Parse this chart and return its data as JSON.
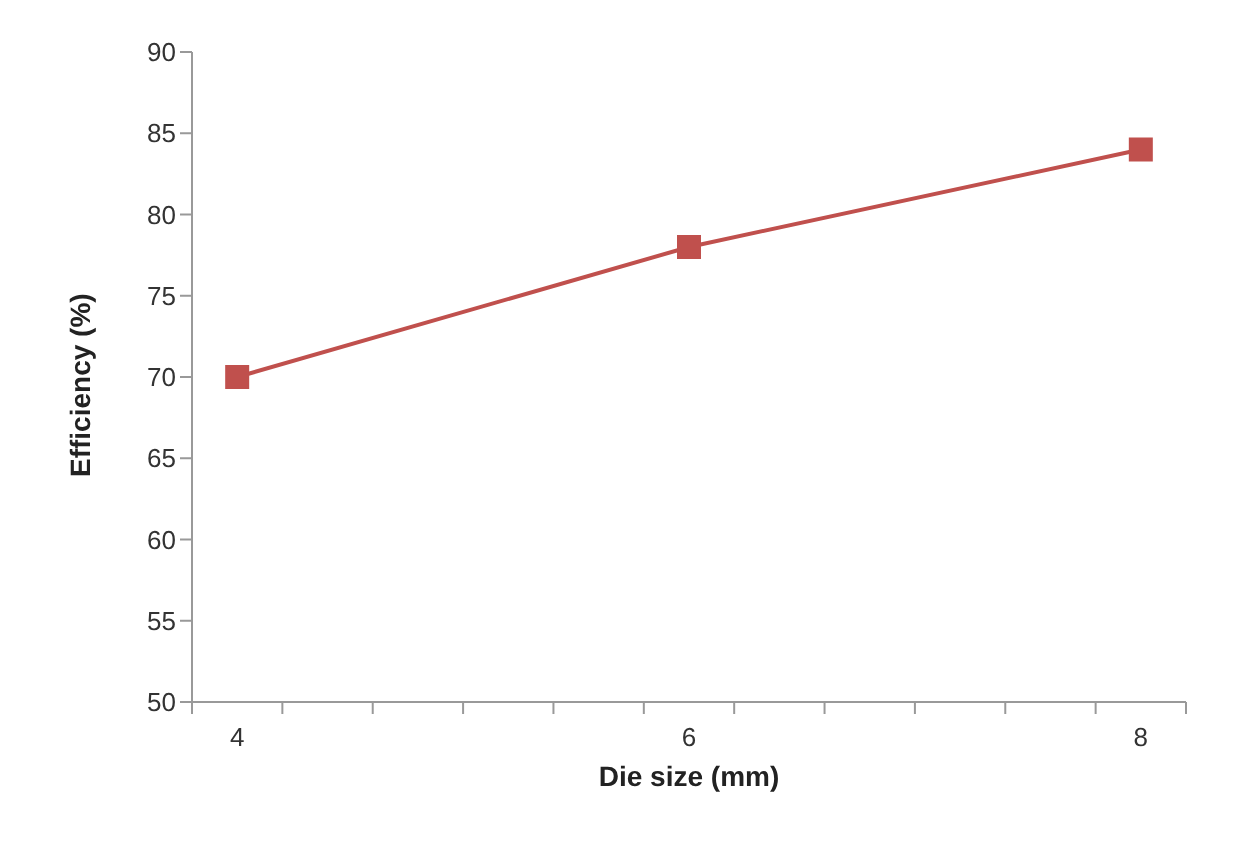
{
  "chart_data": {
    "type": "line",
    "xlabel": "Die size (mm)",
    "ylabel": "Efficiency (%)",
    "x": [
      4,
      6,
      8
    ],
    "series": [
      {
        "color": "#c0504d",
        "values": [
          70,
          78,
          84
        ]
      }
    ],
    "xlim": [
      3.8,
      8.2
    ],
    "xticks": [
      {
        "value": 3.8,
        "label": null
      },
      {
        "value": 4.2,
        "label": null
      },
      {
        "value": 4.6,
        "label": null
      },
      {
        "value": 5.0,
        "label": null
      },
      {
        "value": 5.4,
        "label": null
      },
      {
        "value": 5.8,
        "label": null
      },
      {
        "value": 6.2,
        "label": null
      },
      {
        "value": 6.6,
        "label": null
      },
      {
        "value": 7.0,
        "label": null
      },
      {
        "value": 7.4,
        "label": null
      },
      {
        "value": 7.8,
        "label": null
      },
      {
        "value": 8.2,
        "label": null
      },
      4,
      6,
      8
    ],
    "ylim": [
      50,
      90
    ],
    "yticks": [
      50,
      55,
      60,
      65,
      70,
      75,
      80,
      85,
      90
    ],
    "grid": false,
    "legend": false,
    "marker": "square",
    "line_style": "solid"
  }
}
